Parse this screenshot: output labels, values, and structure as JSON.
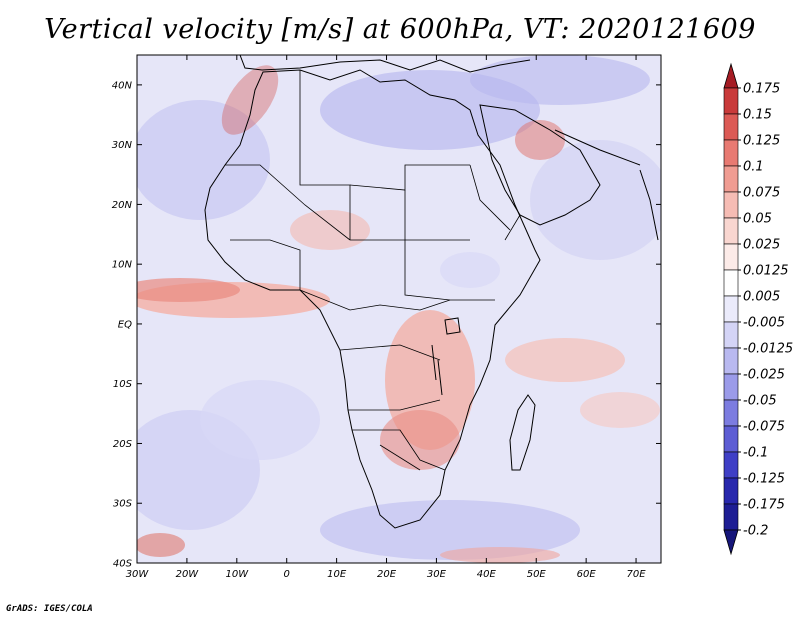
{
  "title": "Vertical velocity [m/s] at 600hPa, VT: 2020121609",
  "credit": "GrADS: IGES/COLA",
  "chart_data": {
    "type": "heatmap",
    "variable": "Vertical velocity",
    "units": "m/s",
    "level": "600hPa",
    "valid_time": "2020121609",
    "x_range": [
      -30,
      75
    ],
    "y_range": [
      -40,
      45
    ],
    "x_ticks": [
      "30W",
      "20W",
      "10W",
      "0",
      "10E",
      "20E",
      "30E",
      "40E",
      "50E",
      "60E",
      "70E"
    ],
    "x_tick_values": [
      -30,
      -20,
      -10,
      0,
      10,
      20,
      30,
      40,
      50,
      60,
      70
    ],
    "y_ticks": [
      "40N",
      "30N",
      "20N",
      "10N",
      "EQ",
      "10S",
      "20S",
      "30S",
      "40S"
    ],
    "y_tick_values": [
      40,
      30,
      20,
      10,
      0,
      -10,
      -20,
      -30,
      -40
    ],
    "colorbar": {
      "levels": [
        "0.175",
        "0.15",
        "0.125",
        "0.1",
        "0.075",
        "0.05",
        "0.025",
        "0.0125",
        "0.005",
        "-0.005",
        "-0.0125",
        "-0.025",
        "-0.05",
        "-0.075",
        "-0.1",
        "-0.125",
        "-0.175",
        "-0.2"
      ],
      "colors": [
        "#a51c24",
        "#c93a3a",
        "#dc5a55",
        "#e87a72",
        "#f09c92",
        "#f6bcb4",
        "#f9d6d0",
        "#fcebe8",
        "#ffffff",
        "#ebebfb",
        "#d4d4f6",
        "#b9b9f0",
        "#9b9be9",
        "#7c7ce0",
        "#5d5dd4",
        "#3f3fc6",
        "#2828ad",
        "#1e1e94",
        "#16167a"
      ]
    }
  }
}
